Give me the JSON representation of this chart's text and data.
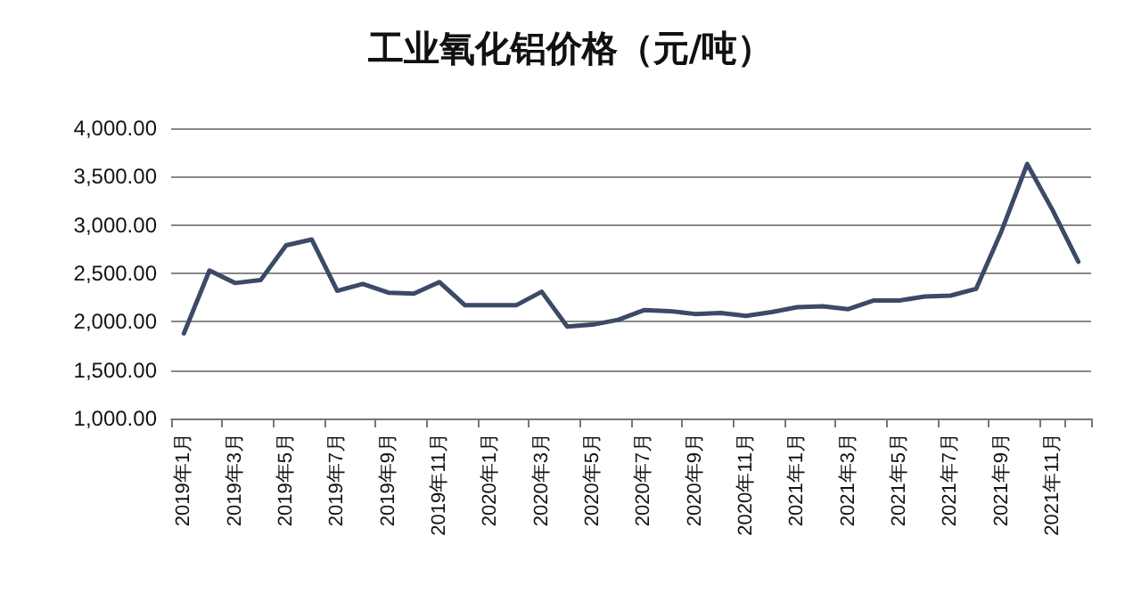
{
  "chart_data": {
    "type": "line",
    "title": "工业氧化铝价格（元/吨）",
    "categories": [
      "2019年1月",
      null,
      "2019年3月",
      null,
      "2019年5月",
      null,
      "2019年7月",
      null,
      "2019年9月",
      null,
      "2019年11月",
      null,
      "2020年1月",
      null,
      "2020年3月",
      null,
      "2020年5月",
      null,
      "2020年7月",
      null,
      "2020年9月",
      null,
      "2020年11月",
      null,
      "2021年1月",
      null,
      "2021年3月",
      null,
      "2021年5月",
      null,
      "2021年7月",
      null,
      "2021年9月",
      null,
      "2021年11月",
      null
    ],
    "series": [
      {
        "color": "#3b4a66",
        "values": [
          1880,
          2530,
          2400,
          2430,
          2790,
          2850,
          2320,
          2390,
          2300,
          2290,
          2410,
          2170,
          2170,
          2170,
          2310,
          1950,
          1970,
          2020,
          2120,
          2110,
          2080,
          2090,
          2060,
          2100,
          2150,
          2160,
          2130,
          2220,
          2220,
          2260,
          2270,
          2340,
          2940,
          3630,
          3150,
          2620
        ]
      }
    ],
    "ylim": [
      1000,
      4000
    ],
    "yticks": [
      {
        "value": 1000,
        "label": "1,000.00"
      },
      {
        "value": 1500,
        "label": "1,500.00"
      },
      {
        "value": 2000,
        "label": "2,000.00"
      },
      {
        "value": 2500,
        "label": "2,500.00"
      },
      {
        "value": 3000,
        "label": "3,000.00"
      },
      {
        "value": 3500,
        "label": "3,500.00"
      },
      {
        "value": 4000,
        "label": "4,000.00"
      }
    ],
    "grid": "y",
    "marker": "none",
    "line_style": "solid"
  }
}
